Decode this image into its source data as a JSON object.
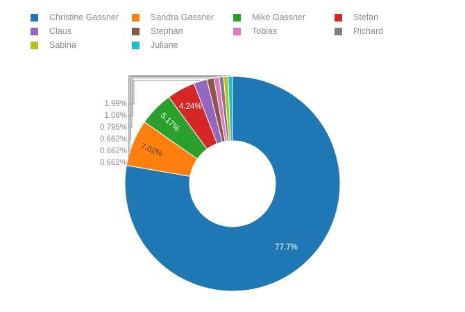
{
  "chart_data": {
    "type": "pie",
    "hole": true,
    "legend_position": "top",
    "series": [
      {
        "name": "Christine Gassner",
        "value": 77.7,
        "label": "77.7%",
        "color": "#1f77b4",
        "label_mode": "inside",
        "label_color": "#ffffff"
      },
      {
        "name": "Sandra Gassner",
        "value": 7.02,
        "label": "7.02%",
        "color": "#ff7f0e",
        "label_mode": "inside",
        "label_color": "#444444"
      },
      {
        "name": "Mike Gassner",
        "value": 5.17,
        "label": "5.17%",
        "color": "#2ca02c",
        "label_mode": "inside",
        "label_color": "#ffffff"
      },
      {
        "name": "Stefan",
        "value": 4.24,
        "label": "4.24%",
        "color": "#d62728",
        "label_mode": "inside",
        "label_color": "#ffffff"
      },
      {
        "name": "Claus",
        "value": 1.99,
        "label": "1.99%",
        "color": "#9467bd",
        "label_mode": "outside"
      },
      {
        "name": "Stephan",
        "value": 1.06,
        "label": "1.06%",
        "color": "#8c564b",
        "label_mode": "outside"
      },
      {
        "name": "Tobias",
        "value": 0.795,
        "label": "0.795%",
        "color": "#e377c2",
        "label_mode": "outside"
      },
      {
        "name": "Richard",
        "value": 0.662,
        "label": "0.662%",
        "color": "#7f7f7f",
        "label_mode": "outside"
      },
      {
        "name": "Sabina",
        "value": 0.662,
        "label": "0.662%",
        "color": "#bcbd22",
        "label_mode": "outside"
      },
      {
        "name": "Juliane",
        "value": 0.662,
        "label": "0.662%",
        "color": "#17becf",
        "label_mode": "outside"
      }
    ]
  }
}
